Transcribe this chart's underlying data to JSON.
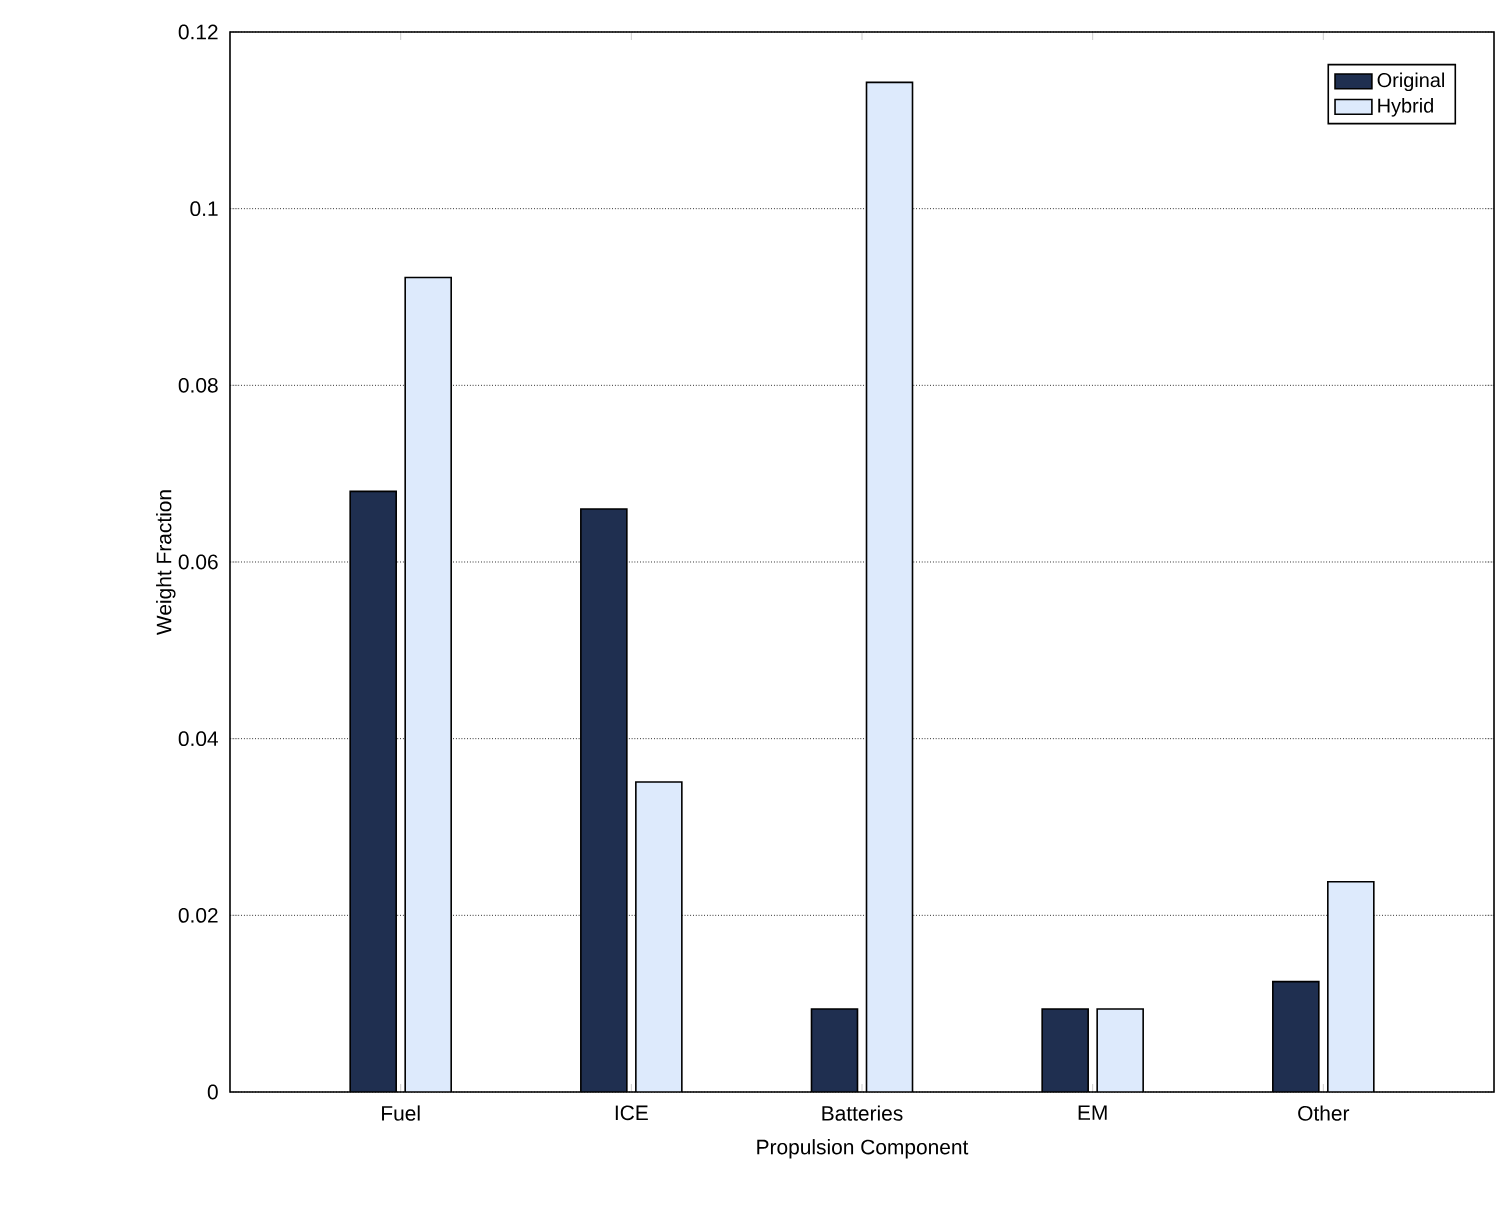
{
  "chart_data": {
    "type": "bar",
    "xlabel": "Propulsion Component",
    "ylabel": "Weight Fraction",
    "categories": [
      "Fuel",
      "ICE",
      "Batteries",
      "EM",
      "Other"
    ],
    "series": [
      {
        "name": "Original",
        "color": "#1f2f50",
        "values": [
          0.068,
          0.066,
          0.0094,
          0.0094,
          0.0125
        ]
      },
      {
        "name": "Hybrid",
        "color": "#ddeafc",
        "values": [
          0.0922,
          0.0351,
          0.1143,
          0.0094,
          0.0238
        ]
      }
    ],
    "ylim": [
      0,
      0.12
    ],
    "yticks": [
      0,
      0.02,
      0.04,
      0.06,
      0.08,
      {
        "value": 0.1,
        "label": "0.1"
      },
      0.12
    ],
    "grid": "y",
    "legend": "top right"
  }
}
